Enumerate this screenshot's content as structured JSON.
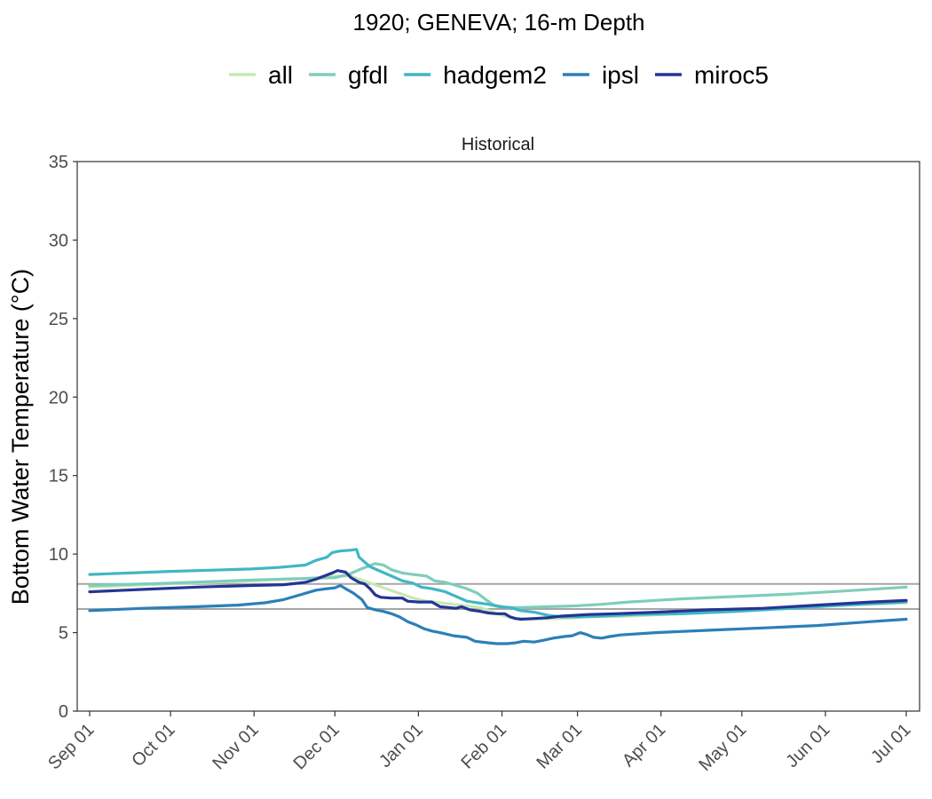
{
  "chart_data": {
    "type": "line",
    "title": "1920; GENEVA; 16-m Depth",
    "panel_label": "Historical",
    "ylabel": "Bottom Water Temperature (°C)",
    "xlabel": "",
    "ylim": [
      0,
      35
    ],
    "yticks": [
      0,
      5,
      10,
      15,
      20,
      25,
      30,
      35
    ],
    "xlim": [
      0,
      303
    ],
    "xticks": [
      {
        "label": "Sep 01",
        "day": 0
      },
      {
        "label": "Oct 01",
        "day": 30
      },
      {
        "label": "Nov 01",
        "day": 61
      },
      {
        "label": "Dec 01",
        "day": 91
      },
      {
        "label": "Jan 01",
        "day": 122
      },
      {
        "label": "Feb 01",
        "day": 153
      },
      {
        "label": "Mar 01",
        "day": 181
      },
      {
        "label": "Apr 01",
        "day": 212
      },
      {
        "label": "May 01",
        "day": 242
      },
      {
        "label": "Jun 01",
        "day": 273
      },
      {
        "label": "Jul 01",
        "day": 303
      }
    ],
    "hlines": [
      8.1,
      6.5
    ],
    "hline_color": "#a6a6a6",
    "legend_position": "top",
    "grid": false,
    "series": [
      {
        "name": "all",
        "color": "#c7e9b4",
        "points": [
          [
            0,
            7.9
          ],
          [
            30,
            8.1
          ],
          [
            60,
            8.3
          ],
          [
            80,
            8.45
          ],
          [
            91,
            8.6
          ],
          [
            97,
            8.6
          ],
          [
            100,
            8.4
          ],
          [
            105,
            8.1
          ],
          [
            110,
            7.8
          ],
          [
            115,
            7.5
          ],
          [
            120,
            7.2
          ],
          [
            125,
            7.0
          ],
          [
            130,
            6.9
          ],
          [
            135,
            6.8
          ],
          [
            140,
            6.7
          ],
          [
            145,
            6.6
          ],
          [
            150,
            6.3
          ],
          [
            153,
            6.1
          ],
          [
            158,
            5.9
          ],
          [
            165,
            5.85
          ],
          [
            175,
            5.9
          ],
          [
            185,
            6.0
          ],
          [
            200,
            6.05
          ],
          [
            220,
            6.2
          ],
          [
            240,
            6.4
          ],
          [
            260,
            6.6
          ],
          [
            280,
            6.75
          ],
          [
            303,
            6.9
          ]
        ]
      },
      {
        "name": "gfdl",
        "color": "#7fcdbb",
        "points": [
          [
            0,
            8.0
          ],
          [
            30,
            8.15
          ],
          [
            60,
            8.35
          ],
          [
            80,
            8.45
          ],
          [
            91,
            8.5
          ],
          [
            96,
            8.7
          ],
          [
            100,
            9.0
          ],
          [
            103,
            9.2
          ],
          [
            106,
            9.4
          ],
          [
            109,
            9.3
          ],
          [
            112,
            9.0
          ],
          [
            116,
            8.8
          ],
          [
            120,
            8.7
          ],
          [
            125,
            8.6
          ],
          [
            128,
            8.3
          ],
          [
            132,
            8.2
          ],
          [
            136,
            8.0
          ],
          [
            140,
            7.8
          ],
          [
            144,
            7.5
          ],
          [
            147,
            7.1
          ],
          [
            150,
            6.75
          ],
          [
            155,
            6.6
          ],
          [
            160,
            6.6
          ],
          [
            170,
            6.65
          ],
          [
            180,
            6.7
          ],
          [
            190,
            6.8
          ],
          [
            200,
            6.95
          ],
          [
            210,
            7.05
          ],
          [
            220,
            7.15
          ],
          [
            240,
            7.3
          ],
          [
            260,
            7.45
          ],
          [
            280,
            7.65
          ],
          [
            303,
            7.9
          ]
        ]
      },
      {
        "name": "hadgem2",
        "color": "#41b6c4",
        "points": [
          [
            0,
            8.7
          ],
          [
            30,
            8.9
          ],
          [
            50,
            9.0
          ],
          [
            60,
            9.05
          ],
          [
            70,
            9.15
          ],
          [
            80,
            9.3
          ],
          [
            84,
            9.6
          ],
          [
            88,
            9.8
          ],
          [
            90,
            10.1
          ],
          [
            93,
            10.2
          ],
          [
            97,
            10.25
          ],
          [
            99,
            10.3
          ],
          [
            100,
            9.8
          ],
          [
            104,
            9.2
          ],
          [
            108,
            8.9
          ],
          [
            112,
            8.6
          ],
          [
            116,
            8.3
          ],
          [
            120,
            8.15
          ],
          [
            123,
            7.9
          ],
          [
            127,
            7.8
          ],
          [
            132,
            7.6
          ],
          [
            136,
            7.3
          ],
          [
            140,
            7.0
          ],
          [
            144,
            6.9
          ],
          [
            148,
            6.8
          ],
          [
            152,
            6.65
          ],
          [
            156,
            6.6
          ],
          [
            160,
            6.4
          ],
          [
            165,
            6.3
          ],
          [
            170,
            6.1
          ],
          [
            175,
            6.0
          ],
          [
            180,
            6.0
          ],
          [
            190,
            6.05
          ],
          [
            203,
            6.15
          ],
          [
            220,
            6.2
          ],
          [
            240,
            6.35
          ],
          [
            260,
            6.55
          ],
          [
            280,
            6.75
          ],
          [
            303,
            6.95
          ]
        ]
      },
      {
        "name": "ipsl",
        "color": "#2c7fb8",
        "points": [
          [
            0,
            6.4
          ],
          [
            20,
            6.55
          ],
          [
            40,
            6.65
          ],
          [
            55,
            6.75
          ],
          [
            65,
            6.9
          ],
          [
            72,
            7.1
          ],
          [
            78,
            7.4
          ],
          [
            84,
            7.7
          ],
          [
            88,
            7.8
          ],
          [
            91,
            7.85
          ],
          [
            93,
            8.0
          ],
          [
            95,
            7.8
          ],
          [
            98,
            7.5
          ],
          [
            101,
            7.1
          ],
          [
            103,
            6.6
          ],
          [
            106,
            6.45
          ],
          [
            109,
            6.35
          ],
          [
            112,
            6.2
          ],
          [
            115,
            6.0
          ],
          [
            118,
            5.7
          ],
          [
            121,
            5.5
          ],
          [
            124,
            5.25
          ],
          [
            127,
            5.1
          ],
          [
            130,
            5.0
          ],
          [
            135,
            4.8
          ],
          [
            140,
            4.7
          ],
          [
            143,
            4.45
          ],
          [
            148,
            4.35
          ],
          [
            151,
            4.3
          ],
          [
            155,
            4.3
          ],
          [
            158,
            4.35
          ],
          [
            161,
            4.45
          ],
          [
            165,
            4.4
          ],
          [
            168,
            4.5
          ],
          [
            172,
            4.65
          ],
          [
            176,
            4.75
          ],
          [
            179,
            4.8
          ],
          [
            182,
            5.0
          ],
          [
            184,
            4.9
          ],
          [
            187,
            4.7
          ],
          [
            190,
            4.65
          ],
          [
            193,
            4.75
          ],
          [
            197,
            4.85
          ],
          [
            210,
            5.0
          ],
          [
            230,
            5.15
          ],
          [
            250,
            5.3
          ],
          [
            270,
            5.45
          ],
          [
            290,
            5.7
          ],
          [
            303,
            5.85
          ]
        ]
      },
      {
        "name": "miroc5",
        "color": "#253494",
        "points": [
          [
            0,
            7.6
          ],
          [
            20,
            7.75
          ],
          [
            40,
            7.9
          ],
          [
            60,
            8.0
          ],
          [
            72,
            8.05
          ],
          [
            80,
            8.2
          ],
          [
            84,
            8.4
          ],
          [
            87,
            8.6
          ],
          [
            90,
            8.8
          ],
          [
            92,
            8.95
          ],
          [
            95,
            8.85
          ],
          [
            97,
            8.5
          ],
          [
            100,
            8.2
          ],
          [
            102,
            8.1
          ],
          [
            104,
            7.8
          ],
          [
            106,
            7.4
          ],
          [
            108,
            7.25
          ],
          [
            112,
            7.2
          ],
          [
            116,
            7.2
          ],
          [
            118,
            7.0
          ],
          [
            122,
            6.95
          ],
          [
            127,
            6.95
          ],
          [
            130,
            6.65
          ],
          [
            133,
            6.6
          ],
          [
            136,
            6.55
          ],
          [
            138,
            6.65
          ],
          [
            141,
            6.45
          ],
          [
            145,
            6.35
          ],
          [
            148,
            6.25
          ],
          [
            151,
            6.2
          ],
          [
            154,
            6.2
          ],
          [
            156,
            6.0
          ],
          [
            158,
            5.9
          ],
          [
            160,
            5.85
          ],
          [
            165,
            5.9
          ],
          [
            170,
            5.95
          ],
          [
            175,
            6.05
          ],
          [
            185,
            6.15
          ],
          [
            195,
            6.2
          ],
          [
            210,
            6.3
          ],
          [
            230,
            6.45
          ],
          [
            250,
            6.55
          ],
          [
            270,
            6.75
          ],
          [
            290,
            6.95
          ],
          [
            303,
            7.05
          ]
        ]
      }
    ]
  }
}
